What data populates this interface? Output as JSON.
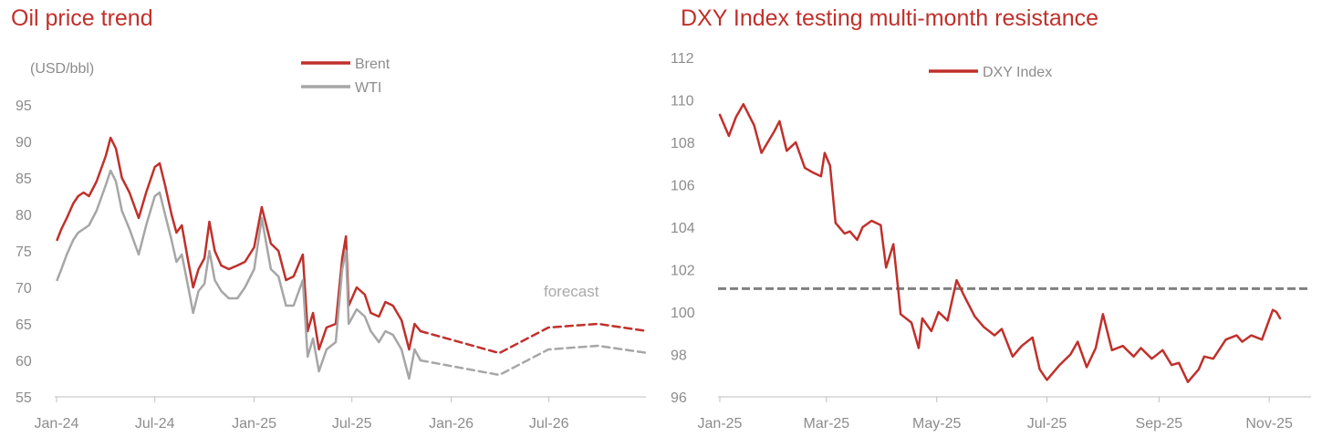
{
  "chart_data": [
    {
      "type": "line",
      "title": "Oil price trend",
      "ylabel": "(USD/bbl)",
      "xlabel": "",
      "ylim": [
        55,
        95
      ],
      "yticks": [
        55,
        60,
        65,
        70,
        75,
        80,
        85,
        90,
        95
      ],
      "xlim": [
        "2024-01-01",
        "2026-12-31"
      ],
      "xticks": [
        "Jan-24",
        "Jul-24",
        "Jan-25",
        "Jul-25",
        "Jan-26",
        "Jul-26"
      ],
      "xtick_dates": [
        "2024-01-01",
        "2024-07-01",
        "2025-01-01",
        "2025-07-01",
        "2026-01-01",
        "2026-07-01"
      ],
      "grid": false,
      "legend_position": "top-center",
      "annotation": "forecast",
      "series": [
        {
          "name": "Brent",
          "color": "#c0302b",
          "actual": [
            [
              "2024-01-02",
              76.5
            ],
            [
              "2024-01-10",
              78.0
            ],
            [
              "2024-01-20",
              79.5
            ],
            [
              "2024-02-01",
              81.5
            ],
            [
              "2024-02-10",
              82.5
            ],
            [
              "2024-02-20",
              83.0
            ],
            [
              "2024-03-01",
              82.5
            ],
            [
              "2024-03-15",
              84.5
            ],
            [
              "2024-04-01",
              88.0
            ],
            [
              "2024-04-10",
              90.5
            ],
            [
              "2024-04-20",
              89.0
            ],
            [
              "2024-05-01",
              85.0
            ],
            [
              "2024-05-15",
              83.0
            ],
            [
              "2024-06-01",
              79.5
            ],
            [
              "2024-06-15",
              83.0
            ],
            [
              "2024-07-01",
              86.5
            ],
            [
              "2024-07-10",
              87.0
            ],
            [
              "2024-07-20",
              84.0
            ],
            [
              "2024-08-01",
              80.0
            ],
            [
              "2024-08-10",
              77.5
            ],
            [
              "2024-08-20",
              78.5
            ],
            [
              "2024-09-01",
              73.5
            ],
            [
              "2024-09-10",
              70.0
            ],
            [
              "2024-09-20",
              72.5
            ],
            [
              "2024-10-01",
              74.0
            ],
            [
              "2024-10-10",
              79.0
            ],
            [
              "2024-10-20",
              75.0
            ],
            [
              "2024-11-01",
              73.0
            ],
            [
              "2024-11-15",
              72.5
            ],
            [
              "2024-12-01",
              73.0
            ],
            [
              "2024-12-15",
              73.5
            ],
            [
              "2025-01-01",
              75.5
            ],
            [
              "2025-01-15",
              81.0
            ],
            [
              "2025-02-01",
              76.0
            ],
            [
              "2025-02-15",
              75.0
            ],
            [
              "2025-03-01",
              71.0
            ],
            [
              "2025-03-15",
              71.5
            ],
            [
              "2025-04-01",
              74.5
            ],
            [
              "2025-04-10",
              64.0
            ],
            [
              "2025-04-20",
              66.5
            ],
            [
              "2025-05-01",
              61.5
            ],
            [
              "2025-05-15",
              64.5
            ],
            [
              "2025-06-01",
              65.0
            ],
            [
              "2025-06-13",
              74.0
            ],
            [
              "2025-06-20",
              77.0
            ],
            [
              "2025-06-25",
              67.5
            ],
            [
              "2025-07-10",
              70.0
            ],
            [
              "2025-07-25",
              69.0
            ],
            [
              "2025-08-05",
              66.5
            ],
            [
              "2025-08-20",
              66.0
            ],
            [
              "2025-09-01",
              68.0
            ],
            [
              "2025-09-15",
              67.5
            ],
            [
              "2025-10-01",
              65.5
            ],
            [
              "2025-10-15",
              61.5
            ],
            [
              "2025-10-25",
              65.0
            ],
            [
              "2025-11-05",
              64.0
            ]
          ],
          "forecast": [
            [
              "2025-11-05",
              64.0
            ],
            [
              "2026-03-31",
              61.0
            ],
            [
              "2026-06-30",
              64.5
            ],
            [
              "2026-09-30",
              65.0
            ],
            [
              "2026-12-31",
              64.0
            ]
          ]
        },
        {
          "name": "WTI",
          "color": "#a6a6a6",
          "actual": [
            [
              "2024-01-02",
              71.0
            ],
            [
              "2024-01-10",
              72.5
            ],
            [
              "2024-01-20",
              74.5
            ],
            [
              "2024-02-01",
              76.5
            ],
            [
              "2024-02-10",
              77.5
            ],
            [
              "2024-02-20",
              78.0
            ],
            [
              "2024-03-01",
              78.5
            ],
            [
              "2024-03-15",
              80.5
            ],
            [
              "2024-04-01",
              84.0
            ],
            [
              "2024-04-10",
              86.0
            ],
            [
              "2024-04-20",
              84.5
            ],
            [
              "2024-05-01",
              80.5
            ],
            [
              "2024-05-15",
              78.0
            ],
            [
              "2024-06-01",
              74.5
            ],
            [
              "2024-06-15",
              78.5
            ],
            [
              "2024-07-01",
              82.5
            ],
            [
              "2024-07-10",
              83.0
            ],
            [
              "2024-07-20",
              80.0
            ],
            [
              "2024-08-01",
              76.5
            ],
            [
              "2024-08-10",
              73.5
            ],
            [
              "2024-08-20",
              74.5
            ],
            [
              "2024-09-01",
              70.0
            ],
            [
              "2024-09-10",
              66.5
            ],
            [
              "2024-09-20",
              69.5
            ],
            [
              "2024-10-01",
              70.5
            ],
            [
              "2024-10-10",
              75.0
            ],
            [
              "2024-10-20",
              71.0
            ],
            [
              "2024-11-01",
              69.5
            ],
            [
              "2024-11-15",
              68.5
            ],
            [
              "2024-12-01",
              68.5
            ],
            [
              "2024-12-15",
              70.0
            ],
            [
              "2025-01-01",
              72.5
            ],
            [
              "2025-01-15",
              79.5
            ],
            [
              "2025-02-01",
              72.5
            ],
            [
              "2025-02-15",
              71.5
            ],
            [
              "2025-03-01",
              67.5
            ],
            [
              "2025-03-15",
              67.5
            ],
            [
              "2025-04-01",
              71.0
            ],
            [
              "2025-04-10",
              60.5
            ],
            [
              "2025-04-20",
              63.0
            ],
            [
              "2025-05-01",
              58.5
            ],
            [
              "2025-05-15",
              61.5
            ],
            [
              "2025-06-01",
              62.5
            ],
            [
              "2025-06-13",
              72.5
            ],
            [
              "2025-06-20",
              75.0
            ],
            [
              "2025-06-25",
              65.0
            ],
            [
              "2025-07-10",
              67.0
            ],
            [
              "2025-07-25",
              66.0
            ],
            [
              "2025-08-05",
              64.0
            ],
            [
              "2025-08-20",
              62.5
            ],
            [
              "2025-09-01",
              64.0
            ],
            [
              "2025-09-15",
              63.5
            ],
            [
              "2025-10-01",
              61.5
            ],
            [
              "2025-10-15",
              57.5
            ],
            [
              "2025-10-25",
              61.5
            ],
            [
              "2025-11-05",
              60.0
            ]
          ],
          "forecast": [
            [
              "2025-11-05",
              60.0
            ],
            [
              "2026-03-31",
              58.0
            ],
            [
              "2026-06-30",
              61.5
            ],
            [
              "2026-09-30",
              62.0
            ],
            [
              "2026-12-31",
              61.0
            ]
          ]
        }
      ]
    },
    {
      "type": "line",
      "title": "DXY Index testing multi-month resistance",
      "ylabel": "",
      "xlabel": "",
      "ylim": [
        96,
        112
      ],
      "yticks": [
        96,
        98,
        100,
        102,
        104,
        106,
        108,
        110,
        112
      ],
      "xlim": [
        "2025-01-01",
        "2025-11-10"
      ],
      "xticks": [
        "Jan-25",
        "Mar-25",
        "May-25",
        "Jul-25",
        "Sep-25",
        "Nov-25"
      ],
      "xtick_dates": [
        "2025-01-01",
        "2025-03-01",
        "2025-05-01",
        "2025-07-01",
        "2025-09-01",
        "2025-11-01"
      ],
      "grid": false,
      "legend_position": "top-center",
      "resistance_level": 101.1,
      "series": [
        {
          "name": "DXY Index",
          "color": "#c0302b",
          "points": [
            [
              "2025-01-01",
              109.3
            ],
            [
              "2025-01-06",
              108.3
            ],
            [
              "2025-01-10",
              109.2
            ],
            [
              "2025-01-14",
              109.8
            ],
            [
              "2025-01-20",
              108.8
            ],
            [
              "2025-01-24",
              107.5
            ],
            [
              "2025-01-31",
              108.5
            ],
            [
              "2025-02-03",
              109.0
            ],
            [
              "2025-02-07",
              107.6
            ],
            [
              "2025-02-12",
              108.0
            ],
            [
              "2025-02-17",
              106.8
            ],
            [
              "2025-02-21",
              106.6
            ],
            [
              "2025-02-26",
              106.4
            ],
            [
              "2025-02-28",
              107.5
            ],
            [
              "2025-03-03",
              106.9
            ],
            [
              "2025-03-06",
              104.2
            ],
            [
              "2025-03-11",
              103.7
            ],
            [
              "2025-03-14",
              103.8
            ],
            [
              "2025-03-18",
              103.4
            ],
            [
              "2025-03-21",
              104.0
            ],
            [
              "2025-03-26",
              104.3
            ],
            [
              "2025-03-31",
              104.1
            ],
            [
              "2025-04-03",
              102.1
            ],
            [
              "2025-04-07",
              103.2
            ],
            [
              "2025-04-10",
              100.8
            ],
            [
              "2025-04-11",
              99.9
            ],
            [
              "2025-04-17",
              99.5
            ],
            [
              "2025-04-21",
              98.3
            ],
            [
              "2025-04-23",
              99.7
            ],
            [
              "2025-04-28",
              99.1
            ],
            [
              "2025-05-02",
              100.0
            ],
            [
              "2025-05-07",
              99.6
            ],
            [
              "2025-05-12",
              101.5
            ],
            [
              "2025-05-16",
              100.8
            ],
            [
              "2025-05-22",
              99.8
            ],
            [
              "2025-05-27",
              99.3
            ],
            [
              "2025-06-02",
              98.9
            ],
            [
              "2025-06-06",
              99.2
            ],
            [
              "2025-06-12",
              97.9
            ],
            [
              "2025-06-17",
              98.4
            ],
            [
              "2025-06-23",
              98.8
            ],
            [
              "2025-06-27",
              97.3
            ],
            [
              "2025-07-01",
              96.8
            ],
            [
              "2025-07-08",
              97.5
            ],
            [
              "2025-07-14",
              98.0
            ],
            [
              "2025-07-18",
              98.6
            ],
            [
              "2025-07-23",
              97.4
            ],
            [
              "2025-07-28",
              98.3
            ],
            [
              "2025-08-01",
              99.9
            ],
            [
              "2025-08-06",
              98.2
            ],
            [
              "2025-08-12",
              98.4
            ],
            [
              "2025-08-18",
              97.9
            ],
            [
              "2025-08-22",
              98.3
            ],
            [
              "2025-08-28",
              97.8
            ],
            [
              "2025-09-03",
              98.2
            ],
            [
              "2025-09-08",
              97.5
            ],
            [
              "2025-09-12",
              97.6
            ],
            [
              "2025-09-17",
              96.7
            ],
            [
              "2025-09-23",
              97.3
            ],
            [
              "2025-09-26",
              97.9
            ],
            [
              "2025-10-01",
              97.8
            ],
            [
              "2025-10-08",
              98.7
            ],
            [
              "2025-10-14",
              98.9
            ],
            [
              "2025-10-17",
              98.6
            ],
            [
              "2025-10-22",
              98.9
            ],
            [
              "2025-10-28",
              98.7
            ],
            [
              "2025-11-03",
              100.1
            ],
            [
              "2025-11-05",
              100.0
            ],
            [
              "2025-11-07",
              99.7
            ]
          ]
        }
      ]
    }
  ]
}
